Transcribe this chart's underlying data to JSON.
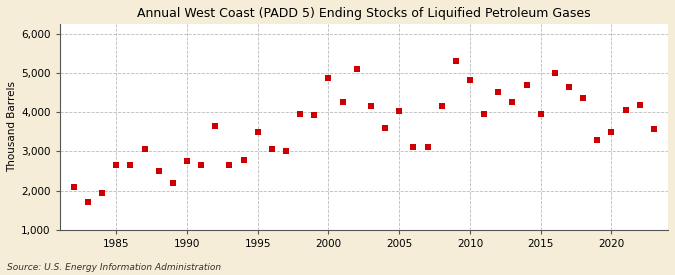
{
  "title": "Annual West Coast (PADD 5) Ending Stocks of Liquified Petroleum Gases",
  "ylabel": "Thousand Barrels",
  "source": "Source: U.S. Energy Information Administration",
  "fig_background_color": "#F5EDD8",
  "plot_background_color": "#FFFFFF",
  "marker_color": "#CC0000",
  "marker": "s",
  "marker_size": 14,
  "xlim": [
    1981,
    2024
  ],
  "ylim": [
    1000,
    6250
  ],
  "yticks": [
    1000,
    2000,
    3000,
    4000,
    5000,
    6000
  ],
  "xticks": [
    1985,
    1990,
    1995,
    2000,
    2005,
    2010,
    2015,
    2020
  ],
  "data": {
    "1982": 2100,
    "1983": 1700,
    "1984": 1950,
    "1985": 2650,
    "1986": 2650,
    "1987": 3050,
    "1988": 2500,
    "1989": 2200,
    "1990": 2750,
    "1991": 2650,
    "1992": 3650,
    "1993": 2650,
    "1994": 2780,
    "1995": 3500,
    "1996": 3050,
    "1997": 3000,
    "1998": 3950,
    "1999": 3920,
    "2000": 4880,
    "2001": 4250,
    "2002": 5100,
    "2003": 4150,
    "2004": 3600,
    "2005": 4020,
    "2006": 3100,
    "2007": 3100,
    "2008": 4150,
    "2009": 5300,
    "2010": 4820,
    "2011": 3950,
    "2012": 4520,
    "2013": 4250,
    "2014": 4680,
    "2015": 3950,
    "2016": 5000,
    "2017": 4650,
    "2018": 4350,
    "2019": 3300,
    "2020": 3500,
    "2021": 4050,
    "2022": 4170,
    "2023": 3560
  }
}
